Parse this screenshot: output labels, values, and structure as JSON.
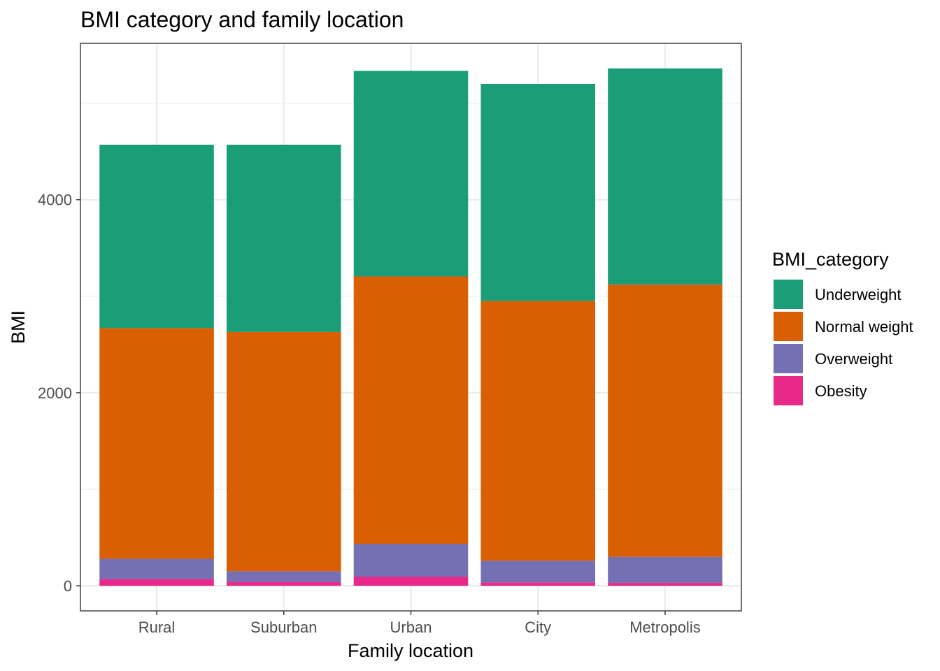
{
  "chart_data": {
    "type": "bar",
    "stacked": true,
    "title": "BMI category and family location",
    "xlabel": "Family location",
    "ylabel": "BMI",
    "ylim": [
      -260,
      5620
    ],
    "yticks": [
      0,
      2000,
      4000
    ],
    "ytick_labels": [
      "0",
      "2000",
      "4000"
    ],
    "yminor": [
      1000,
      3000,
      5000
    ],
    "grid": true,
    "categories": [
      "Rural",
      "Suburban",
      "Urban",
      "City",
      "Metropolis"
    ],
    "series": [
      {
        "name": "Obesity",
        "color": "#E7298A",
        "values": [
          70,
          40,
          95,
          35,
          30
        ]
      },
      {
        "name": "Overweight",
        "color": "#7570B3",
        "values": [
          210,
          110,
          340,
          225,
          270
        ]
      },
      {
        "name": "Normal weight",
        "color": "#D95F02",
        "values": [
          2390,
          2480,
          2770,
          2690,
          2820
        ]
      },
      {
        "name": "Underweight",
        "color": "#1B9E77",
        "values": [
          1900,
          1940,
          2130,
          2250,
          2240
        ]
      }
    ],
    "legend": {
      "title": "BMI_category",
      "position": "right",
      "order": [
        "Underweight",
        "Normal weight",
        "Overweight",
        "Obesity"
      ]
    }
  }
}
